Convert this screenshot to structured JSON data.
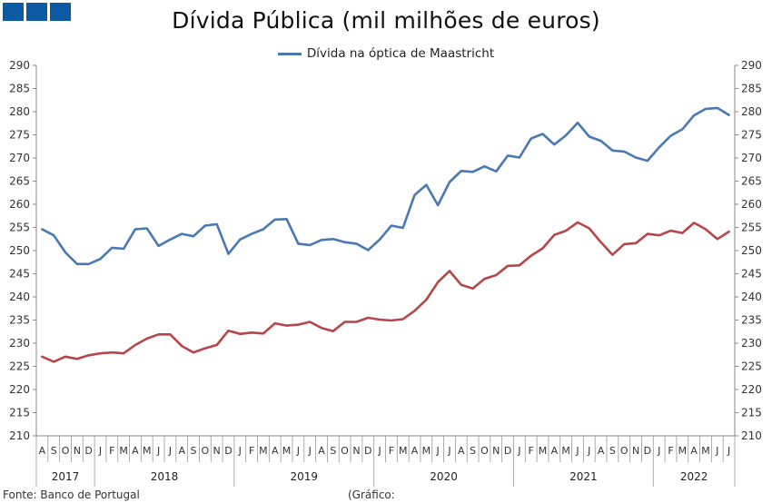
{
  "header": {
    "title": "Dívida Pública (mil milhões de euros)"
  },
  "legend": {
    "series_label": "Dívida na óptica de Maastricht"
  },
  "footer": {
    "source": "Fonte: Banco de Portugal",
    "note": "(Gráfico:"
  },
  "colors": {
    "series_blue": "#4a78b5",
    "series_red": "#b84548",
    "logo": "#0b5aa3"
  },
  "chart_data": {
    "type": "line",
    "title": "Dívida Pública (mil milhões de euros)",
    "ylim": [
      210,
      290
    ],
    "yticks": [
      210,
      215,
      220,
      225,
      230,
      235,
      240,
      245,
      250,
      255,
      260,
      265,
      270,
      275,
      280,
      285,
      290
    ],
    "y_axis_both_sides": true,
    "grid": false,
    "legend_position": "top-center",
    "x_months": [
      "A",
      "S",
      "O",
      "N",
      "D",
      "J",
      "F",
      "M",
      "A",
      "M",
      "J",
      "J",
      "A",
      "S",
      "O",
      "N",
      "D",
      "J",
      "F",
      "M",
      "A",
      "M",
      "J",
      "J",
      "A",
      "S",
      "O",
      "N",
      "D",
      "J",
      "F",
      "M",
      "A",
      "M",
      "J",
      "J",
      "A",
      "S",
      "O",
      "N",
      "D",
      "J",
      "F",
      "M",
      "A",
      "M",
      "J",
      "J",
      "A",
      "S",
      "O",
      "N",
      "D",
      "J",
      "F",
      "M",
      "A",
      "M",
      "J",
      "J"
    ],
    "years": [
      {
        "label": "2017",
        "start": 0,
        "end": 4
      },
      {
        "label": "2018",
        "start": 5,
        "end": 16
      },
      {
        "label": "2019",
        "start": 17,
        "end": 28
      },
      {
        "label": "2020",
        "start": 29,
        "end": 40
      },
      {
        "label": "2021",
        "start": 41,
        "end": 52
      },
      {
        "label": "2022",
        "start": 53,
        "end": 59
      }
    ],
    "series": [
      {
        "name": "Dívida na óptica de Maastricht",
        "values": [
          254.6,
          253.3,
          249.6,
          247.1,
          247.1,
          248.2,
          250.6,
          250.4,
          254.6,
          254.8,
          251.0,
          252.4,
          253.6,
          253.1,
          255.4,
          255.7,
          249.3,
          252.4,
          253.6,
          254.6,
          256.7,
          256.8,
          251.5,
          251.2,
          252.3,
          252.5,
          251.8,
          251.5,
          250.1,
          252.4,
          255.4,
          254.9,
          262.0,
          264.2,
          259.8,
          264.8,
          267.2,
          267.0,
          268.2,
          267.1,
          270.5,
          270.1,
          274.2,
          275.2,
          272.9,
          274.9,
          277.6,
          274.6,
          273.7,
          271.6,
          271.4,
          270.1,
          269.4,
          272.3,
          274.8,
          276.2,
          279.2,
          280.6,
          280.8,
          279.3
        ]
      },
      {
        "values": [
          227.1,
          226.0,
          227.1,
          226.6,
          227.4,
          227.8,
          228.0,
          227.8,
          229.6,
          231.0,
          231.9,
          231.9,
          229.4,
          228.0,
          228.9,
          229.6,
          232.7,
          232.0,
          232.3,
          232.1,
          234.3,
          233.8,
          234.0,
          234.6,
          233.3,
          232.6,
          234.6,
          234.6,
          235.5,
          235.1,
          234.9,
          235.2,
          237.0,
          239.4,
          243.2,
          245.6,
          242.6,
          241.8,
          243.9,
          244.7,
          246.7,
          246.8,
          248.9,
          250.5,
          253.4,
          254.3,
          256.1,
          254.8,
          251.8,
          249.1,
          251.4,
          251.6,
          253.6,
          253.3,
          254.3,
          253.8,
          256.0,
          254.6,
          252.5,
          254.1
        ]
      }
    ]
  }
}
